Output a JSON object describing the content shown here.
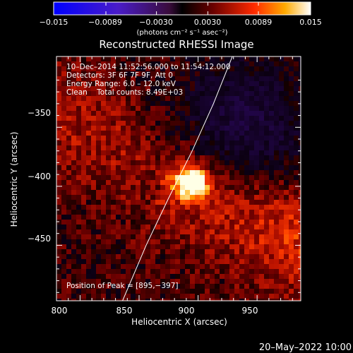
{
  "colorbar": {
    "ticks": [
      "−0.015",
      "−0.0089",
      "−0.0030",
      "0.0030",
      "0.0089",
      "0.015"
    ],
    "min": -0.015,
    "max": 0.015,
    "units": "(photons cm⁻² s⁻¹ asec⁻²)"
  },
  "chart_data": {
    "type": "heatmap",
    "title": "Reconstructed RHESSI Image",
    "xlabel": "Heliocentric X (arcsec)",
    "ylabel": "Heliocentric Y (arcsec)",
    "xlim": [
      780,
      987
    ],
    "ylim": [
      -497,
      -290
    ],
    "xticks": [
      800,
      850,
      900,
      950
    ],
    "yticks": [
      -350,
      -400,
      -450
    ],
    "ytick_labels": [
      "−350",
      "−400",
      "−450"
    ],
    "annotations": [
      "10–Dec–2014 11:52:56.000 to 11:54:12.000",
      "Detectors: 3F 6F 7F 9F, Att 0",
      "Energy Range: 6.0 – 12.0 keV",
      "Clean    Total counts: 8.49E+03"
    ],
    "peak_label": "Position of Peak = [895,−397]",
    "peak": [
      895,
      -397
    ],
    "limb_curve": [
      [
        836,
        -497
      ],
      [
        856,
        -450
      ],
      [
        875,
        -410
      ],
      [
        895,
        -370
      ],
      [
        913,
        -330
      ],
      [
        925,
        -300
      ],
      [
        929,
        -290
      ]
    ]
  },
  "footer": {
    "date": "20–May–2022 10:00"
  }
}
